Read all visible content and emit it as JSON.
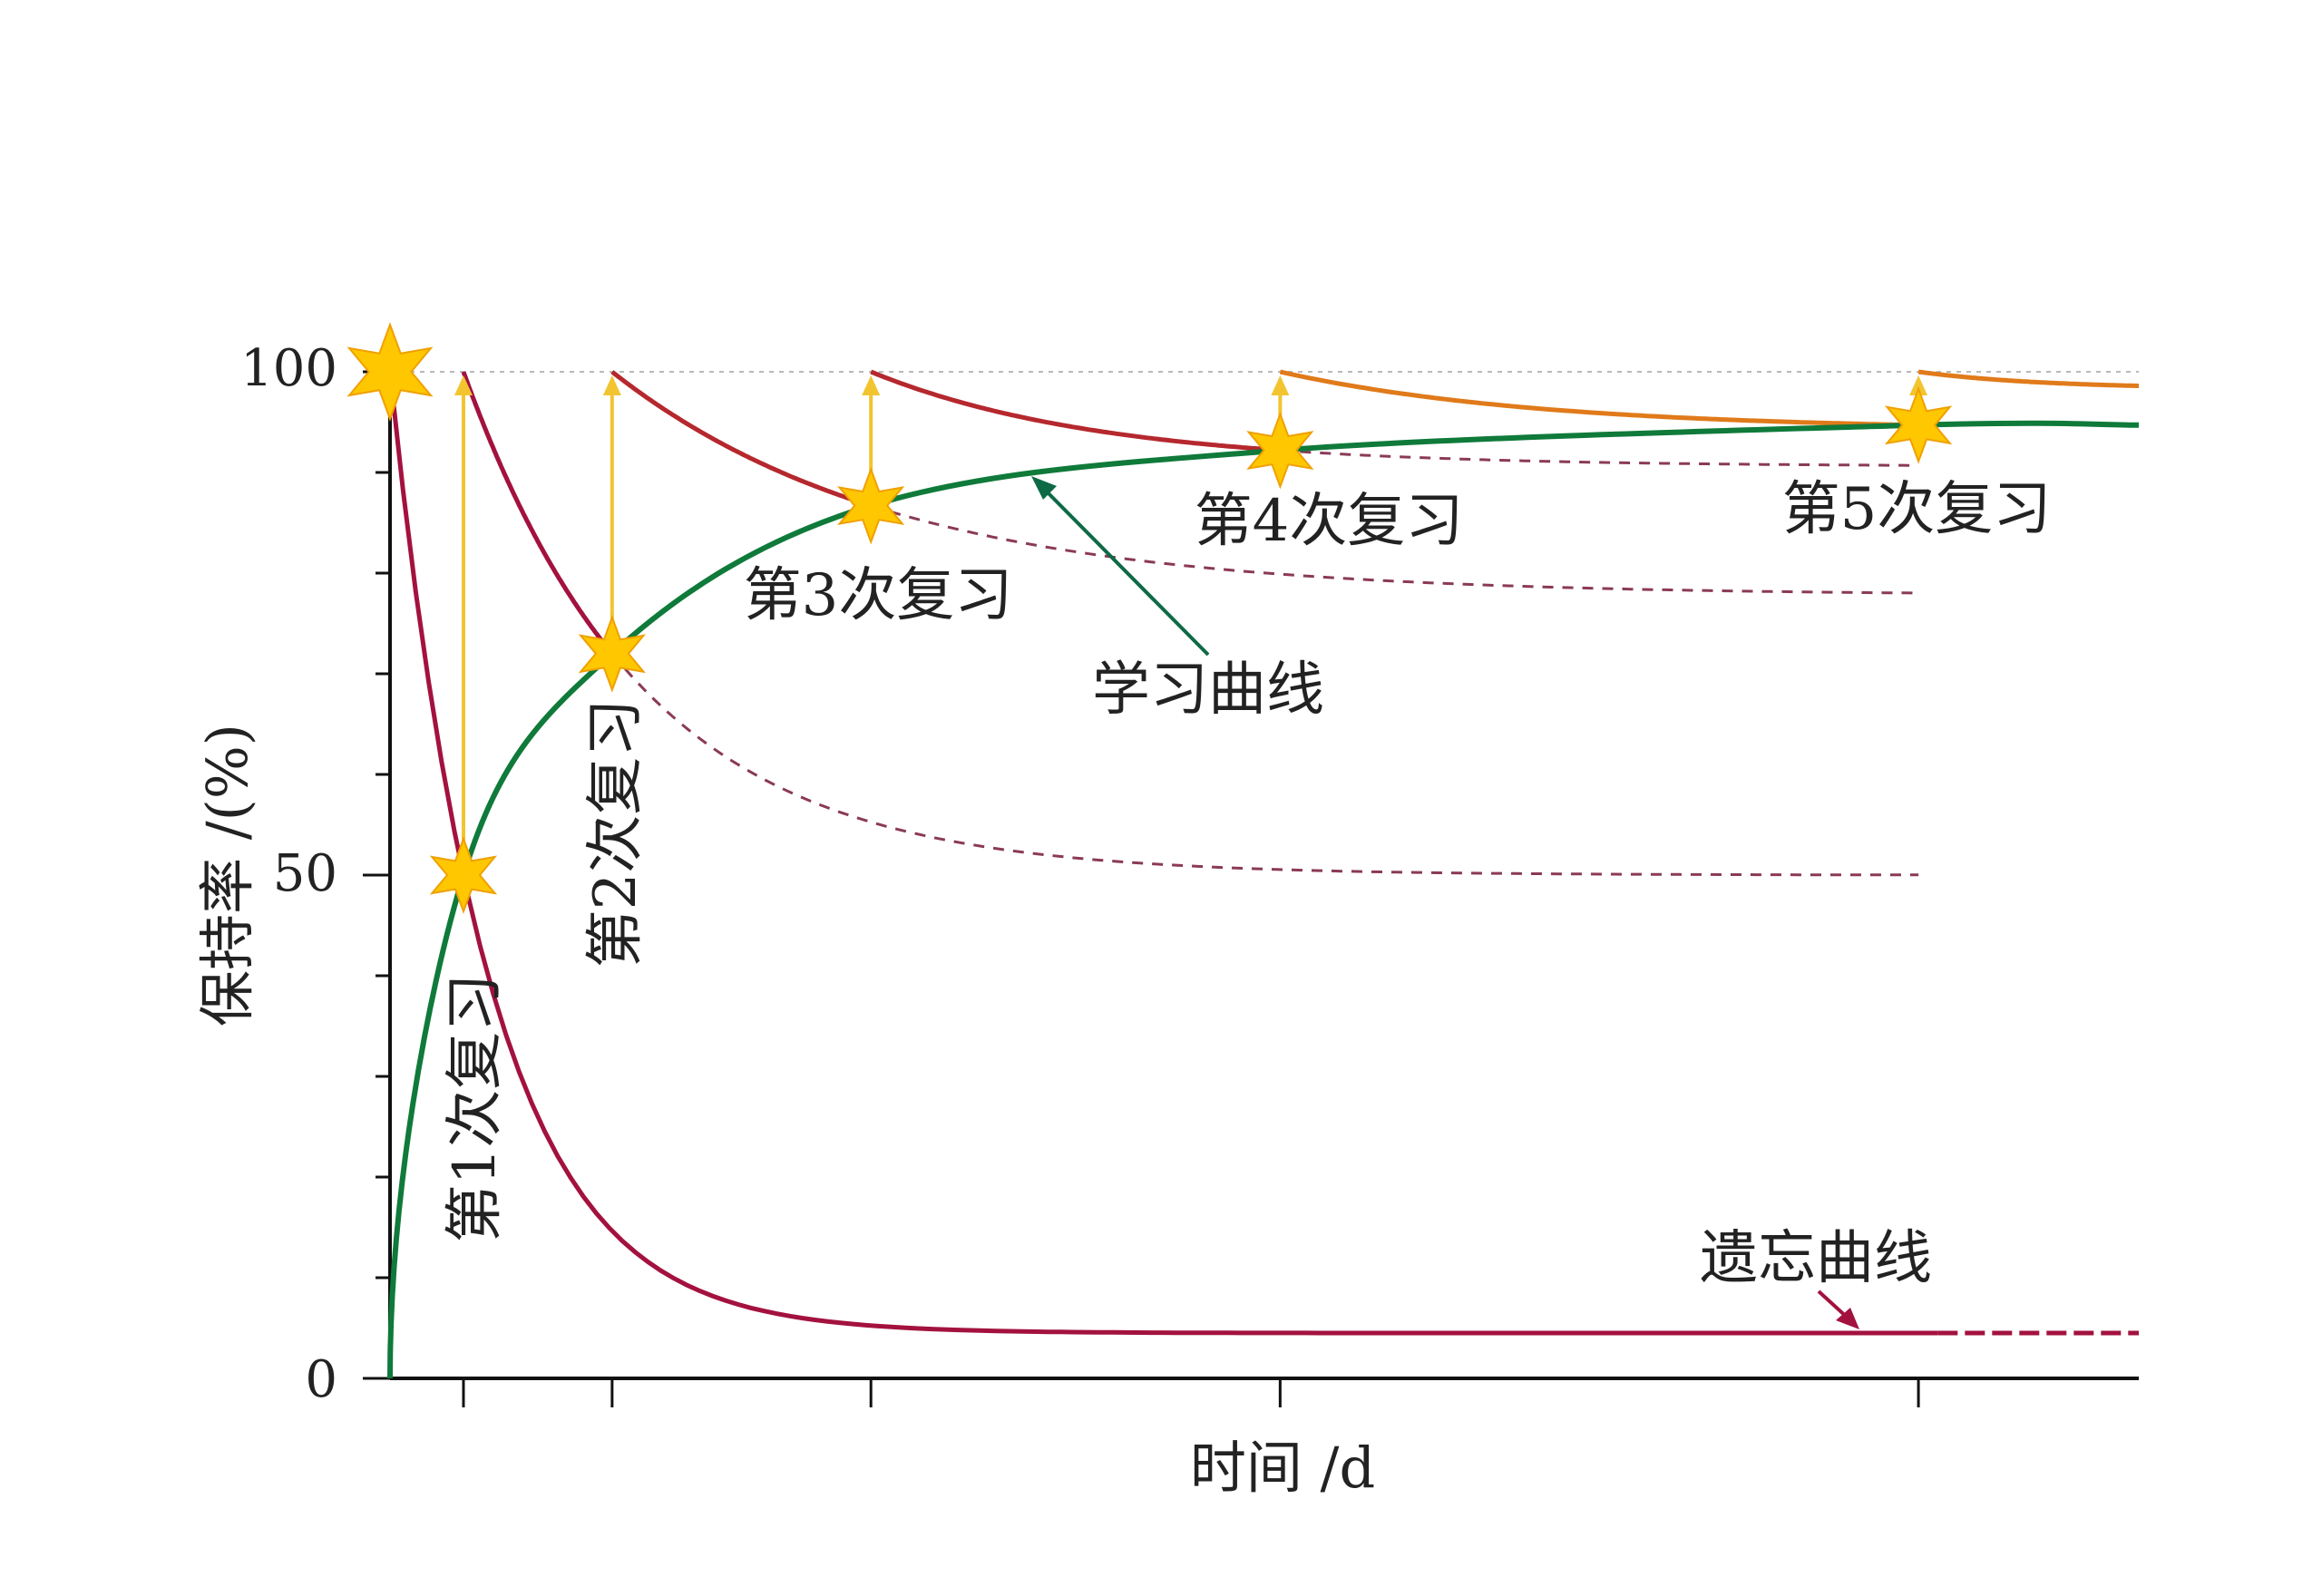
{
  "chart_data": {
    "type": "line",
    "title": "",
    "xlabel": "时间 /d",
    "ylabel": "保持率 /(%)",
    "ylim": [
      0,
      100
    ],
    "xlim": [
      0,
      100
    ],
    "y_ticks": [
      "0",
      "50",
      "100"
    ],
    "y_minor_tick_step": 10,
    "x_ticks_unlabeled": [
      4.2,
      12.7,
      27.5,
      50.9,
      87.4
    ],
    "grid": false,
    "reference_line_100": true,
    "colors": {
      "forgetting": "#a3123f",
      "learning": "#0f7a3a",
      "review_early": "#b5282e",
      "review_late": "#e07a1a",
      "arrow": "#f2c530",
      "star": "#ffc700",
      "dashed": "#8a3a55"
    },
    "series": [
      {
        "name": "学习曲线",
        "kind": "learning",
        "points": [
          [
            0,
            0
          ],
          [
            4.2,
            50
          ],
          [
            12.7,
            72
          ],
          [
            27.5,
            86.7
          ],
          [
            50.9,
            92.2
          ],
          [
            87.4,
            94.7
          ],
          [
            100,
            94.7
          ]
        ]
      },
      {
        "name": "遗忘曲线",
        "kind": "forgetting",
        "start": [
          0,
          100
        ],
        "through": [
          4.2,
          50
        ],
        "asymptote": 4.5,
        "solid_until": 88.5,
        "dashed_until": 100
      }
    ],
    "reviews": [
      {
        "label": "第1次复习",
        "t": 4.2,
        "retention_before": 50,
        "next_t": 12.7,
        "next_value": 72,
        "asymptote": 50,
        "dashed_until": 87.4
      },
      {
        "label": "第2次复习",
        "t": 12.7,
        "retention_before": 72,
        "next_t": 27.5,
        "next_value": 86.7,
        "asymptote": 77.8,
        "dashed_until": 87.4
      },
      {
        "label": "第3次复习",
        "t": 27.5,
        "retention_before": 86.7,
        "next_t": 50.9,
        "next_value": 92.2,
        "asymptote": 90.6,
        "dashed_until": 87.4
      },
      {
        "label": "第4次复习",
        "t": 50.9,
        "retention_before": 92.2,
        "next_t": 87.4,
        "next_value": 94.7,
        "asymptote": 94.2,
        "dashed_until": 87.4
      },
      {
        "label": "第5次复习",
        "t": 87.4,
        "retention_before": 94.7,
        "next_t": 100,
        "next_value": 98.6,
        "asymptote": 98.3,
        "dashed_until": 100
      }
    ],
    "annotations": {
      "learning_curve": "学习曲线",
      "forgetting_curve": "遗忘曲线"
    }
  }
}
